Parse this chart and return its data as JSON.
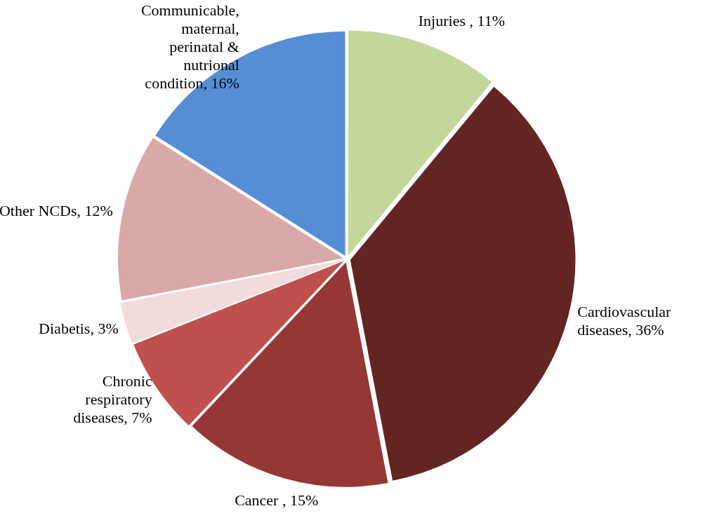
{
  "chart_data": {
    "type": "pie",
    "categories": [
      "Injuries ",
      "Cardiovascular diseases",
      "Cancer ",
      "Chronic respiratory diseases",
      "Diabetis",
      "Other NCDs",
      "Communicable, maternal, perinatal & nutrional condition"
    ],
    "values": [
      11,
      36,
      15,
      7,
      3,
      12,
      16
    ],
    "value_labels": [
      "11%",
      "36%",
      "15%",
      "7%",
      "3%",
      "12%",
      "16%"
    ],
    "colors": [
      "#c4d79b",
      "#632523",
      "#953735",
      "#c0504d",
      "#f2dcdb",
      "#d9a9a8",
      "#558ed5"
    ],
    "legend": false
  }
}
